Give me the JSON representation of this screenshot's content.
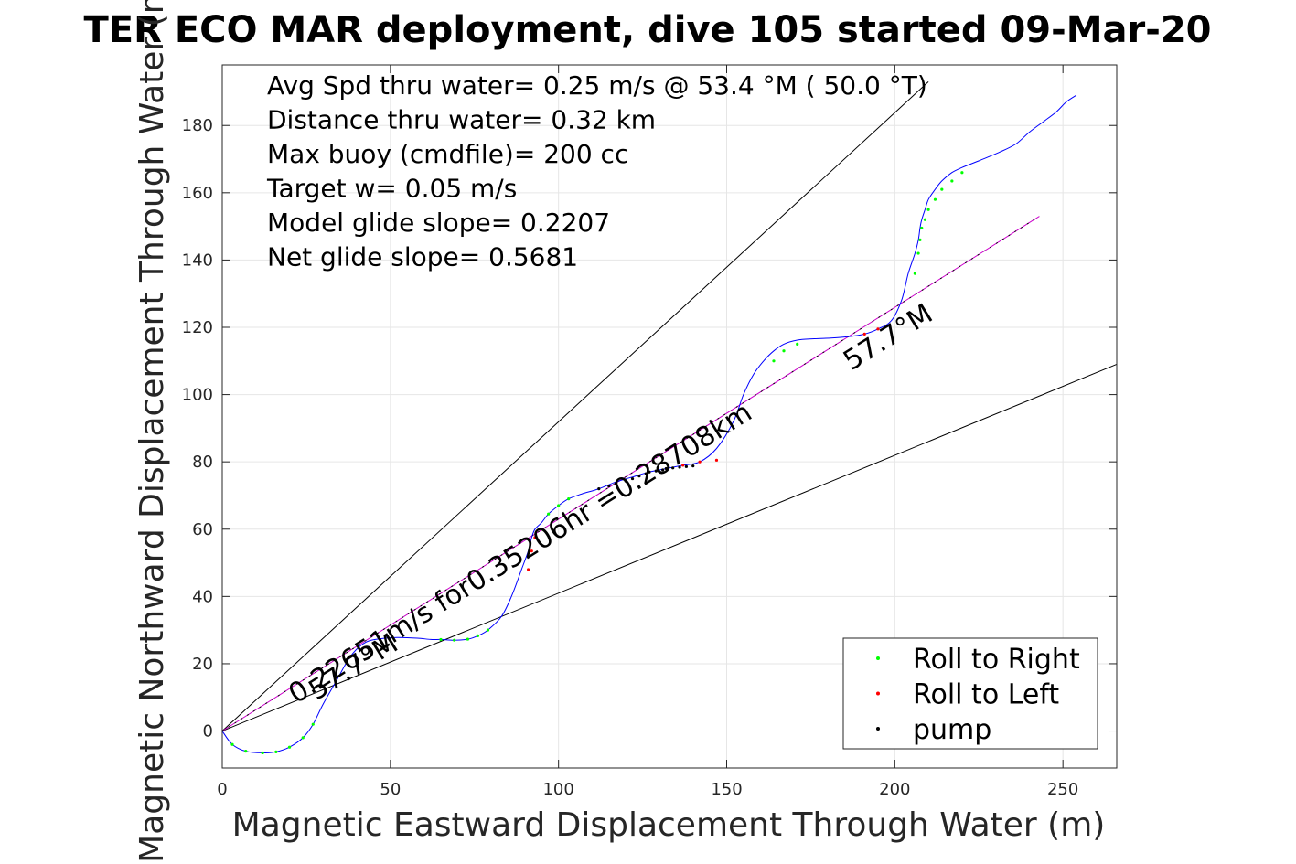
{
  "chart_data": {
    "type": "line",
    "title": "TER ECO MAR deployment, dive 105 started 09-Mar-20",
    "xlabel": "Magnetic Eastward Displacement Through Water (m)",
    "ylabel": "Magnetic Northward Displacement Through Water (m)",
    "xlim": [
      0,
      266
    ],
    "ylim": [
      -11,
      198
    ],
    "xticks": [
      0,
      50,
      100,
      150,
      200,
      250
    ],
    "yticks": [
      0,
      20,
      40,
      60,
      80,
      100,
      120,
      140,
      160,
      180
    ],
    "grid": true,
    "info_lines": [
      "Avg Spd thru water=  0.25 m/s @  53.4 °M ( 50.0 °T)",
      "Distance thru water=  0.32 km",
      "Max buoy (cmdfile)= 200 cc",
      "Target w= 0.05 m/s",
      "Model glide slope= 0.2207",
      "Net glide slope= 0.5681"
    ],
    "annotations": [
      {
        "text": "0.22651m/s for0.35206hr =0.28708km",
        "x": 22,
        "y": 8,
        "angle_deg": 32.1
      },
      {
        "text": "57.7°M",
        "x": 28,
        "y": 9,
        "angle_deg": 32.1
      },
      {
        "text": "57.7°M",
        "x": 187,
        "y": 107,
        "angle_deg": 32.1
      }
    ],
    "legend": {
      "position": "bottom-right",
      "entries": [
        {
          "label": "Roll to Right",
          "color": "#00ff00"
        },
        {
          "label": "Roll to Left",
          "color": "#ff0000"
        },
        {
          "label": "pump",
          "color": "#000000"
        }
      ]
    },
    "reference_lines": [
      {
        "x": [
          0,
          210
        ],
        "y": [
          0,
          193
        ],
        "color": "#000000"
      },
      {
        "x": [
          0,
          266
        ],
        "y": [
          0,
          109
        ],
        "color": "#000000"
      },
      {
        "x": [
          0,
          243
        ],
        "y": [
          0,
          153
        ],
        "color": "#cc00cc"
      },
      {
        "x": [
          0,
          243
        ],
        "y": [
          0,
          153
        ],
        "color": "#000000"
      }
    ],
    "series": [
      {
        "color": "#0000ff",
        "x": [
          0,
          3,
          7,
          12,
          16,
          20,
          24,
          27,
          30,
          34,
          38,
          42,
          46,
          52,
          58,
          62,
          65,
          69,
          73,
          76,
          79,
          83,
          86,
          89,
          91,
          92,
          93,
          95,
          97,
          100,
          103,
          107,
          112,
          117,
          122,
          127,
          132,
          137,
          142,
          147,
          152,
          155,
          158,
          161,
          164,
          167,
          171,
          176,
          181,
          186,
          191,
          195,
          199,
          202,
          204,
          206,
          207,
          207.5,
          208,
          209,
          210,
          212,
          214,
          217,
          220,
          225,
          231,
          236,
          240,
          244,
          248,
          251,
          254
        ],
        "y": [
          0,
          -4,
          -6,
          -6.5,
          -6.2,
          -4.8,
          -2,
          2,
          8,
          15,
          22,
          26,
          27.3,
          27.8,
          27.6,
          27.2,
          27.2,
          27,
          27.3,
          28.3,
          30,
          34,
          40,
          48,
          53.5,
          57.5,
          60,
          62,
          64.5,
          67,
          69,
          70.5,
          72,
          74,
          75.5,
          77,
          78,
          79,
          80,
          84,
          92,
          100,
          106,
          110,
          113,
          115,
          116.2,
          116.6,
          116.8,
          117.2,
          118,
          119.5,
          122,
          128,
          136,
          142,
          146,
          149.5,
          152,
          155,
          158,
          161,
          163.5,
          166,
          167.5,
          169.5,
          172,
          174.5,
          178,
          181,
          184,
          187,
          189
        ]
      }
    ],
    "roll_right_points": {
      "color": "#00ff00",
      "x": [
        3,
        7,
        12,
        16,
        20,
        24,
        27,
        65,
        69,
        73,
        76,
        79,
        97,
        100,
        103,
        164,
        167,
        171,
        206,
        207,
        207.5,
        208,
        209,
        210,
        212,
        214,
        217,
        220
      ],
      "y": [
        -4,
        -6,
        -6.5,
        -6.2,
        -4.8,
        -2,
        2,
        27.2,
        27,
        27.3,
        28.3,
        30,
        64.5,
        67,
        69,
        110,
        113,
        115,
        136,
        142,
        146,
        149.5,
        152,
        155,
        158,
        161,
        163.5,
        166
      ]
    },
    "roll_left_points": {
      "color": "#ff0000",
      "x": [
        91,
        92,
        93,
        95,
        137,
        142,
        147,
        191,
        195
      ],
      "y": [
        48,
        53.5,
        57.5,
        60,
        79,
        80,
        80.5,
        118,
        119.5
      ]
    },
    "pump_points": {
      "color": "#000000",
      "x": [
        112,
        115,
        117,
        120,
        122,
        124,
        126,
        127,
        129,
        131,
        132,
        134,
        136,
        138,
        140
      ],
      "y": [
        72,
        72.8,
        73.5,
        74.3,
        75,
        75.8,
        76.5,
        77,
        77.3,
        77.6,
        78,
        78.2,
        78.4,
        78.6,
        78.8
      ]
    }
  }
}
